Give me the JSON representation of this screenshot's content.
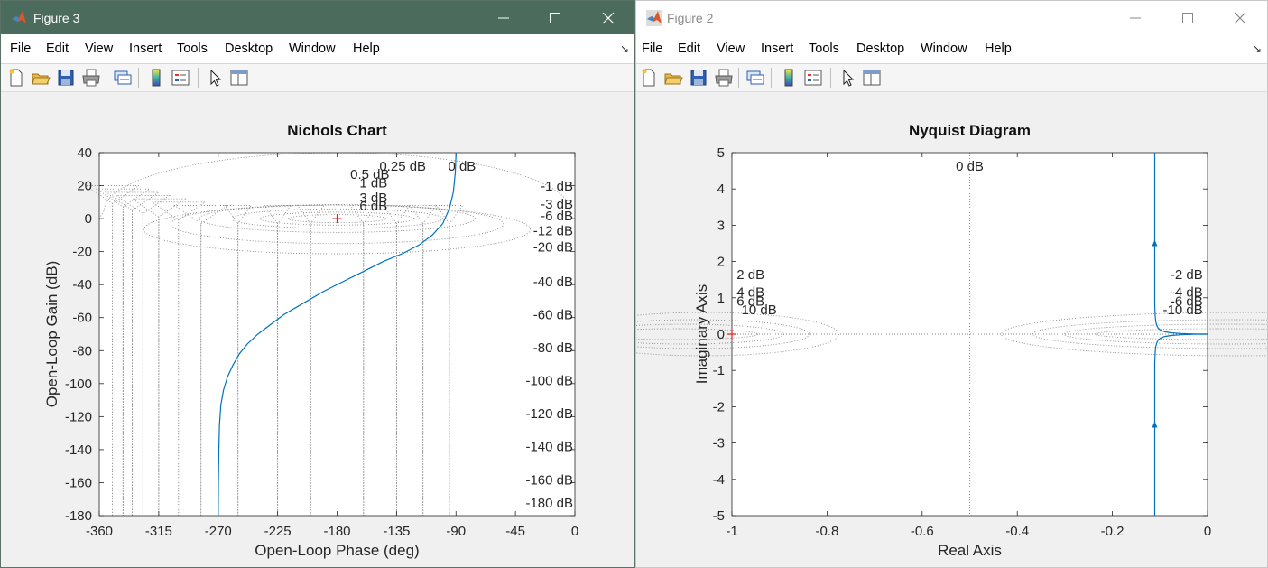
{
  "menus": [
    "File",
    "Edit",
    "View",
    "Insert",
    "Tools",
    "Desktop",
    "Window",
    "Help"
  ],
  "figure3": {
    "window_title": "Figure 3",
    "chart_data": {
      "type": "line",
      "title": "Nichols Chart",
      "xlabel": "Open-Loop Phase (deg)",
      "ylabel": "Open-Loop Gain (dB)",
      "xlim": [
        -360,
        0
      ],
      "ylim": [
        -180,
        40
      ],
      "xticks": [
        -360,
        -315,
        -270,
        -225,
        -180,
        -135,
        -90,
        -45,
        0
      ],
      "yticks": [
        40,
        20,
        0,
        -20,
        -40,
        -60,
        -80,
        -100,
        -120,
        -140,
        -160,
        -180
      ],
      "grid_labels": [
        "0.25 dB",
        "0.5 dB",
        "1 dB",
        "3 dB",
        "6 dB",
        "0 dB",
        "-1 dB",
        "-3 dB",
        "-6 dB",
        "-12 dB",
        "-20 dB",
        "-40 dB",
        "-60 dB",
        "-80 dB",
        "-100 dB",
        "-120 dB",
        "-140 dB",
        "-160 dB",
        "-180 dB"
      ],
      "critical_point": {
        "x": -180,
        "y": 0
      },
      "series": [
        {
          "color": "#0072bd",
          "x": [
            -270,
            -269.8,
            -269.5,
            -269,
            -268,
            -266,
            -263,
            -259,
            -254,
            -248,
            -240,
            -230,
            -220,
            -205,
            -190,
            -175,
            -160,
            -145,
            -130,
            -118,
            -108,
            -100,
            -95,
            -92,
            -90.5,
            -90
          ],
          "y": [
            -180,
            -160,
            -140,
            -125,
            -113,
            -104,
            -96,
            -89,
            -82,
            -76,
            -70,
            -64,
            -58,
            -51,
            -44,
            -38,
            -32,
            -26,
            -21,
            -16,
            -10,
            -3,
            6,
            16,
            28,
            40
          ]
        }
      ]
    }
  },
  "figure2": {
    "window_title": "Figure 2",
    "chart_data": {
      "type": "line",
      "title": "Nyquist Diagram",
      "xlabel": "Real Axis",
      "ylabel": "Imaginary Axis",
      "xlim": [
        -1,
        0
      ],
      "ylim": [
        -5,
        5
      ],
      "xticks": [
        -1,
        -0.8,
        -0.6,
        -0.4,
        -0.2,
        0
      ],
      "yticks": [
        5,
        4,
        3,
        2,
        1,
        0,
        -1,
        -2,
        -3,
        -4,
        -5
      ],
      "grid_labels": [
        "0 dB",
        "2 dB",
        "4 dB",
        "6 dB",
        "10 dB",
        "-2 dB",
        "-4 dB",
        "-6 dB",
        "-10 dB"
      ],
      "critical_point": {
        "x": -1,
        "y": 0
      },
      "series": [
        {
          "color": "#0072bd",
          "x": [
            -0.111,
            -0.111,
            -0.111,
            -0.11,
            -0.109,
            -0.107,
            -0.104,
            -0.099,
            -0.09,
            -0.075,
            -0.055,
            -0.03,
            -0.01,
            0
          ],
          "y": [
            5,
            1.5,
            0.8,
            0.5,
            0.35,
            0.25,
            0.17,
            0.11,
            0.065,
            0.035,
            0.017,
            0.006,
            0.001,
            0
          ]
        },
        {
          "color": "#0072bd",
          "x": [
            -0.111,
            -0.111,
            -0.111,
            -0.11,
            -0.109,
            -0.107,
            -0.104,
            -0.099,
            -0.09,
            -0.075,
            -0.055,
            -0.03,
            -0.01,
            0
          ],
          "y": [
            -5,
            -1.5,
            -0.8,
            -0.5,
            -0.35,
            -0.25,
            -0.17,
            -0.11,
            -0.065,
            -0.035,
            -0.017,
            -0.006,
            -0.001,
            0
          ]
        }
      ],
      "arrows": [
        {
          "x": -0.111,
          "y": 2.5,
          "dir": "up"
        },
        {
          "x": -0.111,
          "y": -2.5,
          "dir": "up"
        }
      ]
    }
  }
}
